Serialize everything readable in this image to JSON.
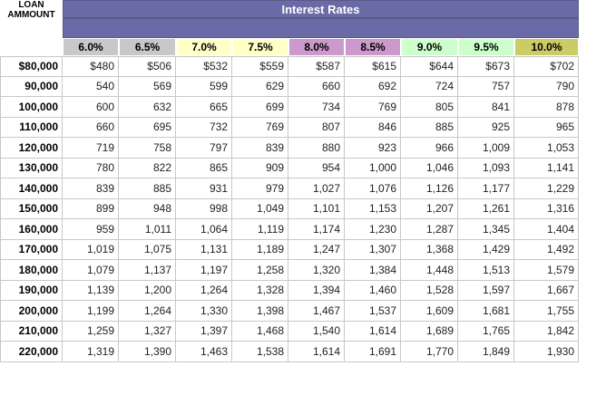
{
  "corner_label": [
    "LOAN",
    "AMMOUNT"
  ],
  "banner_title": "Interest Rates",
  "colors": {
    "banner": "#6a6aa6",
    "rates": [
      "#c8c8c8",
      "#c8c8c8",
      "#ffffc8",
      "#ffffc8",
      "#cc99cc",
      "#cc99cc",
      "#ccffcc",
      "#ccffcc",
      "#cccc66"
    ]
  },
  "rates": [
    "6.0%",
    "6.5%",
    "7.0%",
    "7.5%",
    "8.0%",
    "8.5%",
    "9.0%",
    "9.5%",
    "10.0%"
  ],
  "rows": [
    {
      "amount": "$80,000",
      "values": [
        "$480",
        "$506",
        "$532",
        "$559",
        "$587",
        "$615",
        "$644",
        "$673",
        "$702"
      ]
    },
    {
      "amount": "90,000",
      "values": [
        "540",
        "569",
        "599",
        "629",
        "660",
        "692",
        "724",
        "757",
        "790"
      ]
    },
    {
      "amount": "100,000",
      "values": [
        "600",
        "632",
        "665",
        "699",
        "734",
        "769",
        "805",
        "841",
        "878"
      ]
    },
    {
      "amount": "110,000",
      "values": [
        "660",
        "695",
        "732",
        "769",
        "807",
        "846",
        "885",
        "925",
        "965"
      ]
    },
    {
      "amount": "120,000",
      "values": [
        "719",
        "758",
        "797",
        "839",
        "880",
        "923",
        "966",
        "1,009",
        "1,053"
      ]
    },
    {
      "amount": "130,000",
      "values": [
        "780",
        "822",
        "865",
        "909",
        "954",
        "1,000",
        "1,046",
        "1,093",
        "1,141"
      ]
    },
    {
      "amount": "140,000",
      "values": [
        "839",
        "885",
        "931",
        "979",
        "1,027",
        "1,076",
        "1,126",
        "1,177",
        "1,229"
      ]
    },
    {
      "amount": "150,000",
      "values": [
        "899",
        "948",
        "998",
        "1,049",
        "1,101",
        "1,153",
        "1,207",
        "1,261",
        "1,316"
      ]
    },
    {
      "amount": "160,000",
      "values": [
        "959",
        "1,011",
        "1,064",
        "1,119",
        "1,174",
        "1,230",
        "1,287",
        "1,345",
        "1,404"
      ]
    },
    {
      "amount": "170,000",
      "values": [
        "1,019",
        "1,075",
        "1,131",
        "1,189",
        "1,247",
        "1,307",
        "1,368",
        "1,429",
        "1,492"
      ]
    },
    {
      "amount": "180,000",
      "values": [
        "1,079",
        "1,137",
        "1,197",
        "1,258",
        "1,320",
        "1,384",
        "1,448",
        "1,513",
        "1,579"
      ]
    },
    {
      "amount": "190,000",
      "values": [
        "1,139",
        "1,200",
        "1,264",
        "1,328",
        "1,394",
        "1,460",
        "1,528",
        "1,597",
        "1,667"
      ]
    },
    {
      "amount": "200,000",
      "values": [
        "1,199",
        "1,264",
        "1,330",
        "1,398",
        "1,467",
        "1,537",
        "1,609",
        "1,681",
        "1,755"
      ]
    },
    {
      "amount": "210,000",
      "values": [
        "1,259",
        "1,327",
        "1,397",
        "1,468",
        "1,540",
        "1,614",
        "1,689",
        "1,765",
        "1,842"
      ]
    },
    {
      "amount": "220,000",
      "values": [
        "1,319",
        "1,390",
        "1,463",
        "1,538",
        "1,614",
        "1,691",
        "1,770",
        "1,849",
        "1,930"
      ]
    }
  ]
}
